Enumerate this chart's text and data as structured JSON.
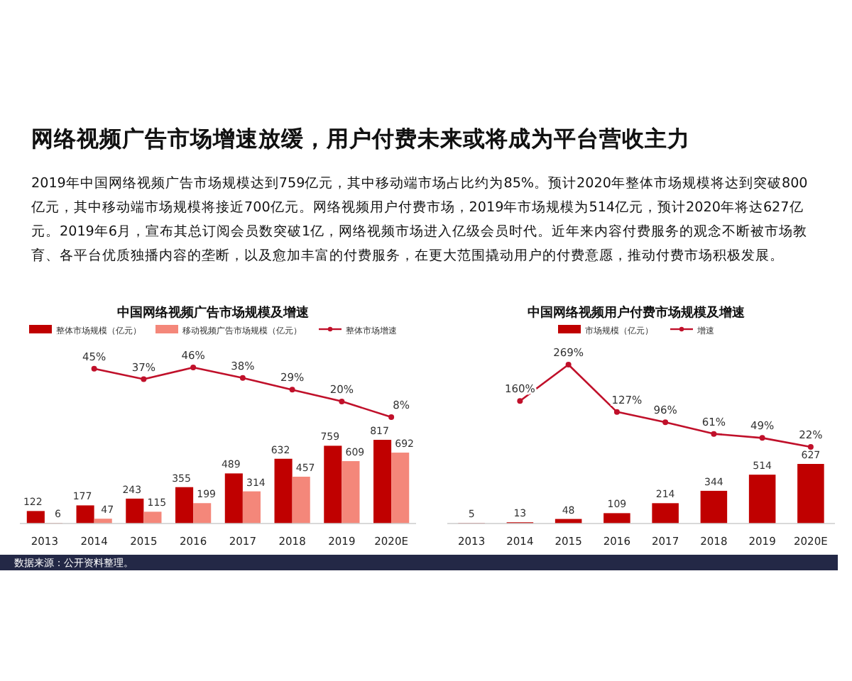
{
  "chart_data": [
    {
      "type": "other",
      "title": "网络视频广告市场增速放缓，用户付费未来或将成为平台营收主力",
      "subtitle": "2019年中国网络视频广告市场规模达到759亿元，其中移动端市场占比约为85%。预计2020年整体市场规模将达到突破800亿元，其中移动端市场规模将接近700亿元。网络视频用户付费市场，2019年市场规模为514亿元，预计2020年将达627亿元。2019年6月，宣布其总订阅会员数突破1亿，网络视频市场进入亿级会员时代。近年来内容付费服务的观念不断被市场教育、各平台优质独播内容的垄断，以及愈加丰富的付费服务，在更大范围撬动用户的付费意愿，推动付费市场积极发展。",
      "annotations": [
        "数据来源：公开资料整理。"
      ]
    },
    {
      "type": "bar",
      "categories": [
        "2013",
        "2014",
        "2015",
        "2016",
        "2017",
        "2018",
        "2019",
        "2020E"
      ],
      "data_labels": true,
      "legend": "top",
      "series": [
        {
          "name": "整体市场规模（亿元）",
          "color": "#c00000",
          "values": [
            122,
            177,
            243,
            355,
            489,
            632,
            759,
            817
          ]
        },
        {
          "name": "移动视频广告市场规模（亿元）",
          "color": "#f4877a",
          "values": [
            6,
            47,
            115,
            199,
            314,
            457,
            609,
            692
          ]
        }
      ]
    },
    {
      "type": "line",
      "title": "中国网络视频广告市场规模及增速",
      "categories": [
        null,
        null,
        null,
        null,
        null,
        null,
        null,
        null
      ],
      "legend": "top",
      "marker": "circle",
      "series": [
        {
          "name": "整体市场增速",
          "color": "#c0102a",
          "values": [
            null,
            45,
            37,
            46,
            38,
            29,
            20,
            8
          ],
          "value_labels": [
            null,
            "45%",
            "37%",
            "46%",
            "38%",
            "29%",
            "20%",
            "8%"
          ]
        }
      ]
    },
    {
      "type": "bar",
      "categories": [
        "2013",
        "2014",
        "2015",
        "2016",
        "2017",
        "2018",
        "2019",
        "2020E"
      ],
      "data_labels": true,
      "legend": "top",
      "series": [
        {
          "name": "市场规模（亿元）",
          "color": "#c00000",
          "values": [
            5,
            13,
            48,
            109,
            214,
            344,
            514,
            627
          ]
        }
      ]
    },
    {
      "type": "line",
      "title": "中国网络视频用户付费市场规模及增速",
      "categories": [
        null,
        null,
        null,
        null,
        null,
        null,
        null,
        null
      ],
      "legend": "top",
      "marker": "circle",
      "series": [
        {
          "name": "增速",
          "color": "#c0102a",
          "values": [
            null,
            160,
            269,
            127,
            96,
            61,
            49,
            22
          ],
          "value_labels": [
            null,
            "160%",
            "269%",
            "127%",
            "96%",
            "61%",
            "49%",
            "22%"
          ]
        }
      ]
    }
  ]
}
